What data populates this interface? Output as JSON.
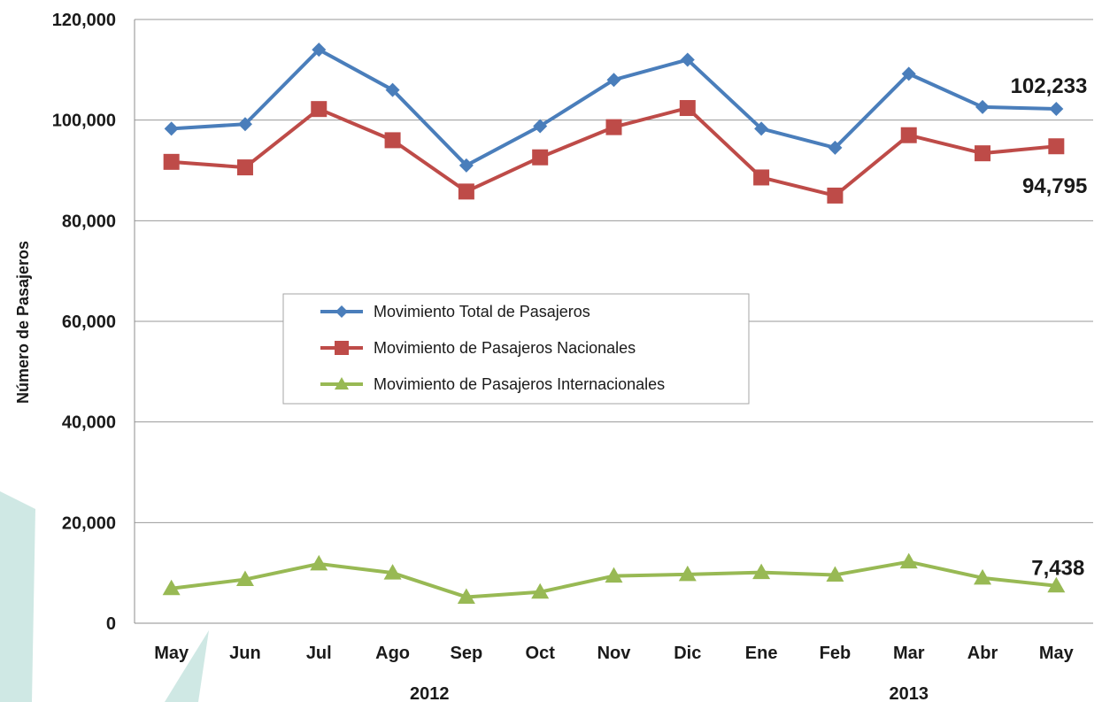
{
  "chart_data": {
    "type": "line",
    "ylabel": "Número de Pasajeros",
    "xlabel": "",
    "ylim": [
      0,
      120000
    ],
    "y_ticks": [
      "0",
      "20,000",
      "40,000",
      "60,000",
      "80,000",
      "100,000",
      "120,000"
    ],
    "y_tick_values": [
      0,
      20000,
      40000,
      60000,
      80000,
      100000,
      120000
    ],
    "categories": [
      "May",
      "Jun",
      "Jul",
      "Ago",
      "Sep",
      "Oct",
      "Nov",
      "Dic",
      "Ene",
      "Feb",
      "Mar",
      "Abr",
      "May"
    ],
    "year_labels": [
      {
        "label": "2012",
        "span": [
          0,
          7
        ]
      },
      {
        "label": "2013",
        "span": [
          8,
          12
        ]
      }
    ],
    "grid": true,
    "legend_placement": "center-left",
    "series": [
      {
        "name": "Movimiento Total de Pasajeros",
        "color": "#4a7ebb",
        "marker": "diamond",
        "values": [
          98300,
          99200,
          114000,
          106000,
          91000,
          98800,
          108000,
          112000,
          98300,
          94500,
          109200,
          102600,
          102233
        ]
      },
      {
        "name": "Movimiento de Pasajeros Nacionales",
        "color": "#be4b48",
        "marker": "square",
        "values": [
          91700,
          90600,
          102200,
          96000,
          85800,
          92600,
          98600,
          102400,
          88600,
          85000,
          97000,
          93400,
          94795
        ]
      },
      {
        "name": "Movimiento de Pasajeros Internacionales",
        "color": "#98b954",
        "marker": "triangle",
        "values": [
          6900,
          8700,
          11800,
          10000,
          5200,
          6200,
          9400,
          9700,
          10100,
          9600,
          12200,
          9000,
          7438
        ]
      }
    ],
    "annotations": [
      {
        "text": "102,233",
        "series": 0,
        "index": 12
      },
      {
        "text": "94,795",
        "series": 1,
        "index": 12
      },
      {
        "text": "7,438",
        "series": 2,
        "index": 12
      }
    ]
  }
}
